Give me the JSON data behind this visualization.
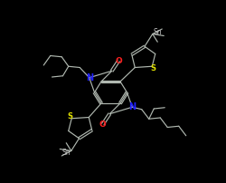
{
  "bg_color": "#000000",
  "bond_color": "#b0b8b0",
  "n_color": "#2020ff",
  "o_color": "#ff2020",
  "s_color": "#e0e000",
  "sn_color": "#c8c8c8",
  "figsize": [
    2.5,
    2.02
  ],
  "dpi": 100,
  "xlim": [
    0,
    10
  ],
  "ylim": [
    0,
    8.08
  ]
}
